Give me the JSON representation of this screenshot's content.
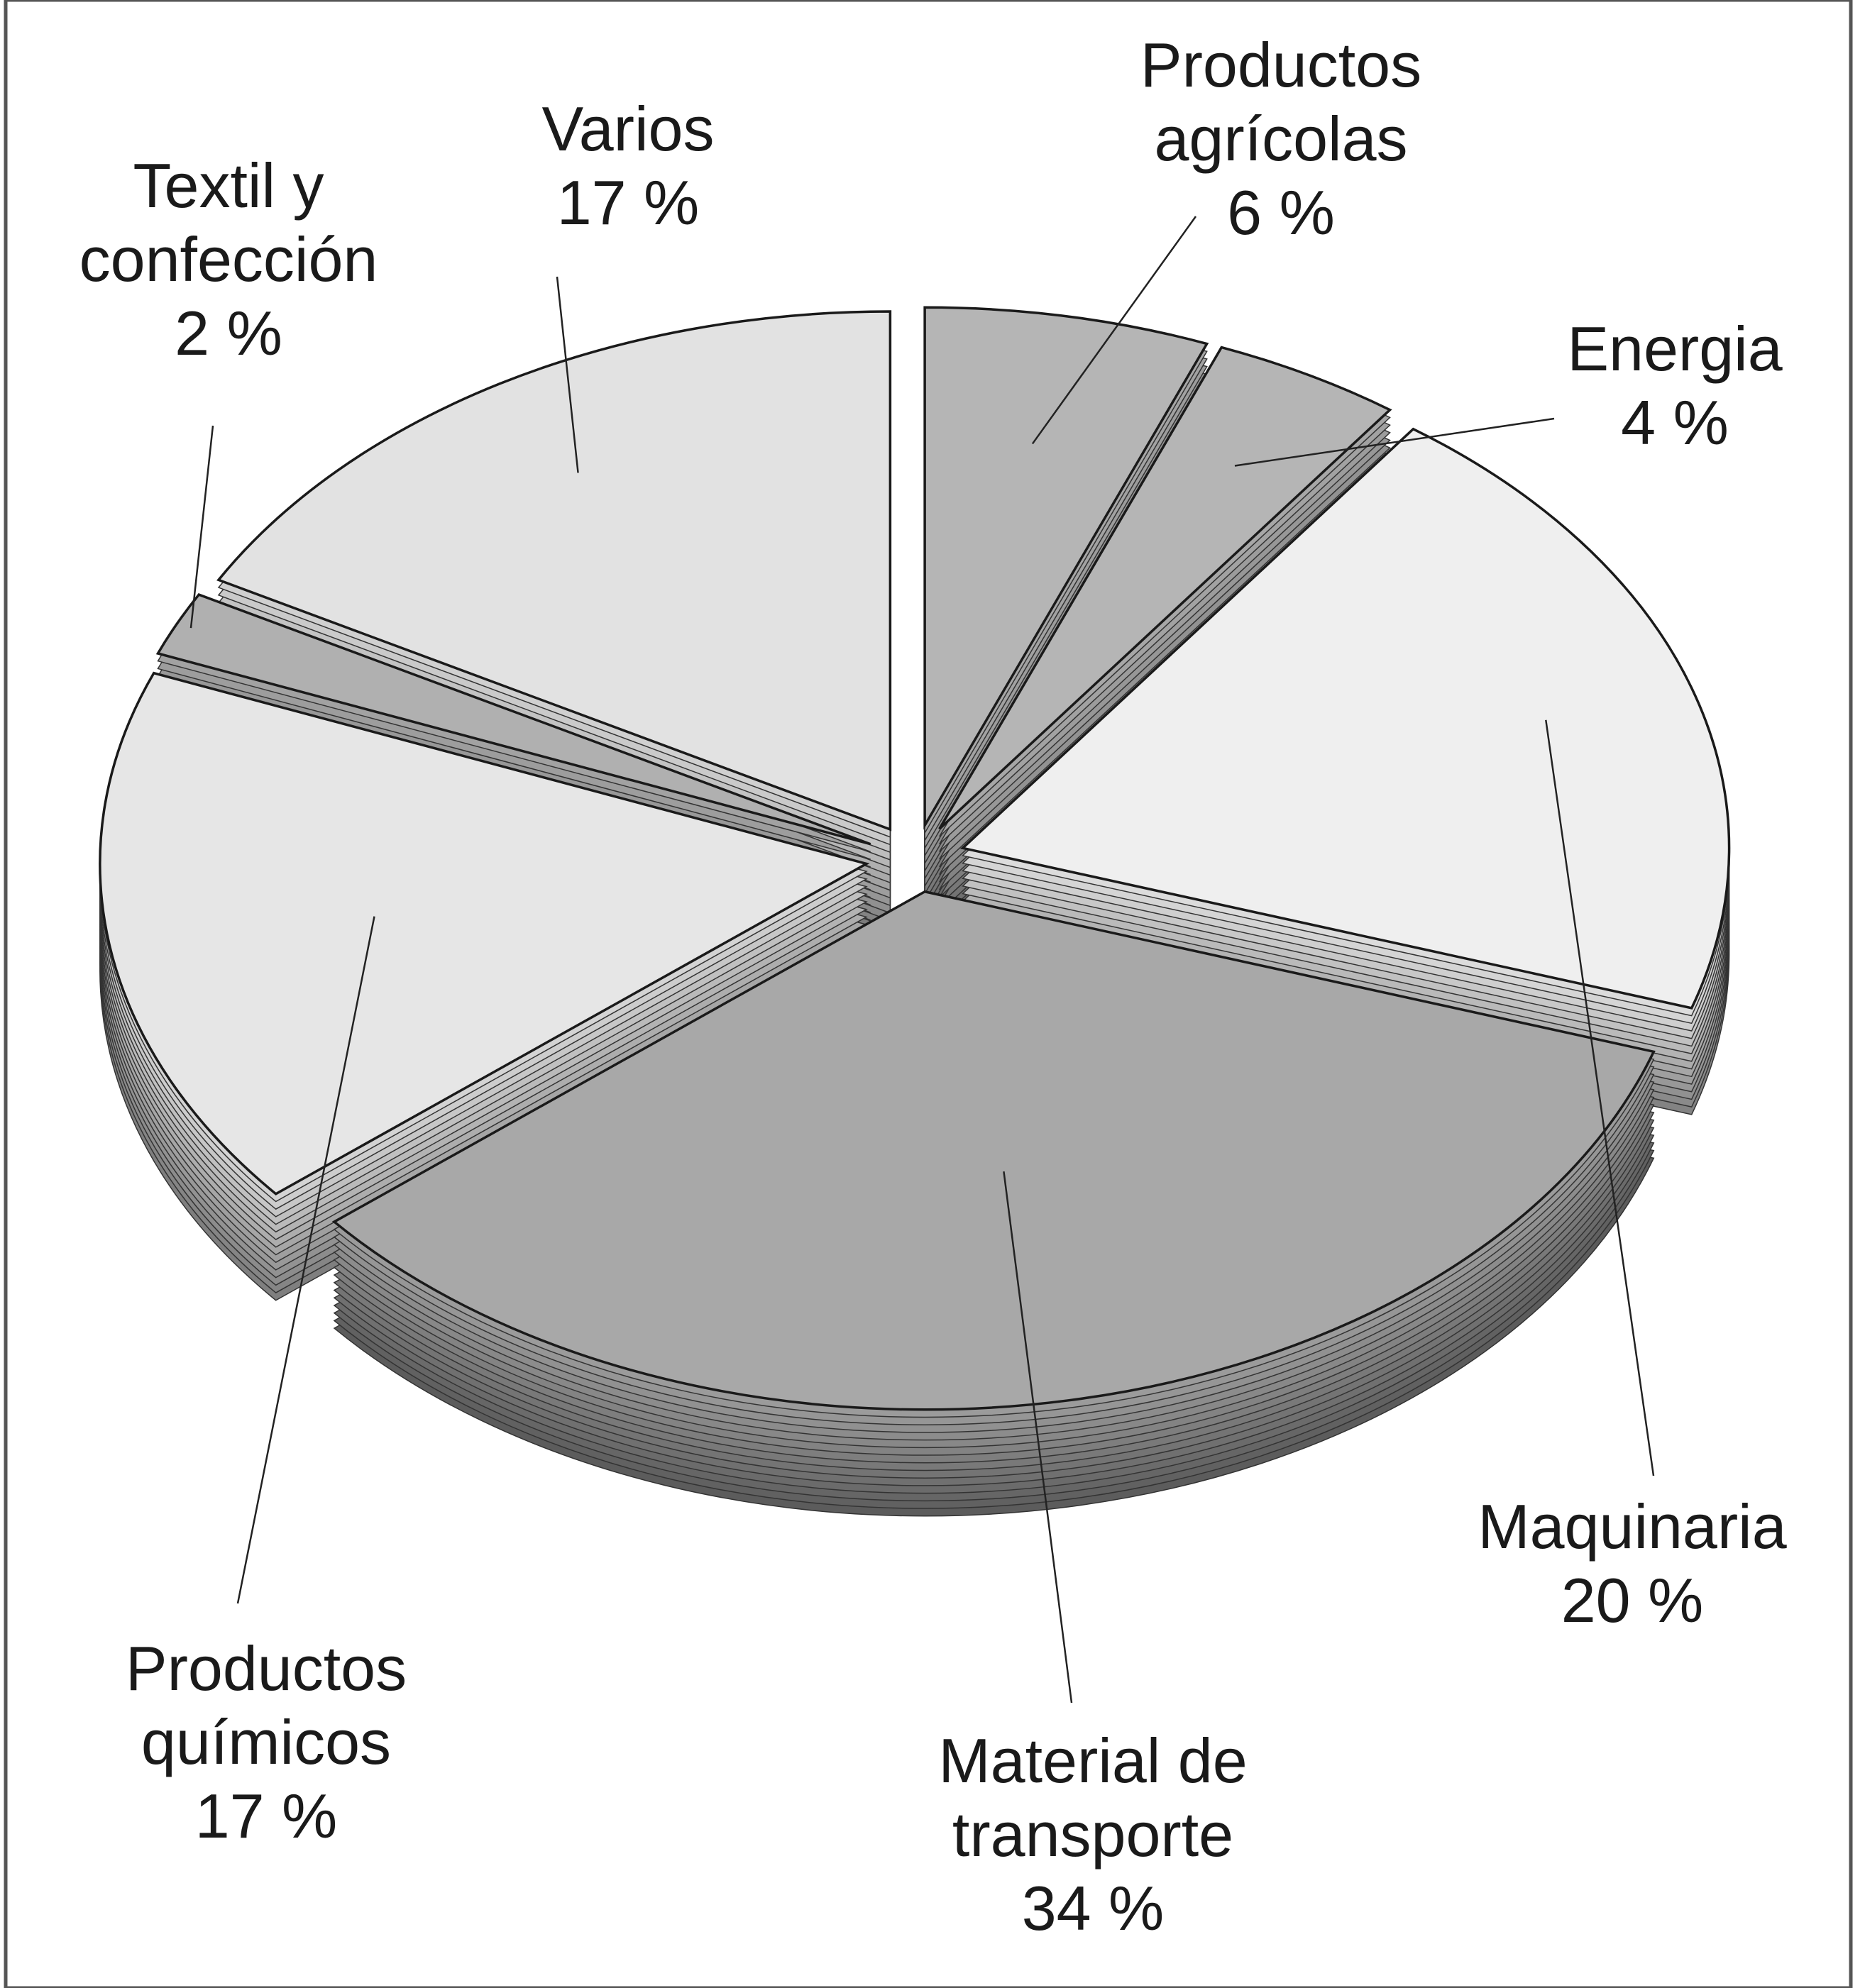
{
  "chart_data": {
    "type": "pie",
    "categories": [
      "Productos agrícolas",
      "Energia",
      "Maquinaria",
      "Material de transporte",
      "Productos químicos",
      "Textil y confección",
      "Varios"
    ],
    "values": [
      6,
      4,
      20,
      34,
      17,
      2,
      17
    ],
    "value_labels": [
      "6 %",
      "4 %",
      "20 %",
      "34 %",
      "17 %",
      "2 %",
      "17 %"
    ],
    "colors": [
      "#b5b5b5",
      "#b5b5b5",
      "#efefef",
      "#a8a8a8",
      "#e6e6e6",
      "#b0b0b0",
      "#e2e2e2"
    ]
  }
}
